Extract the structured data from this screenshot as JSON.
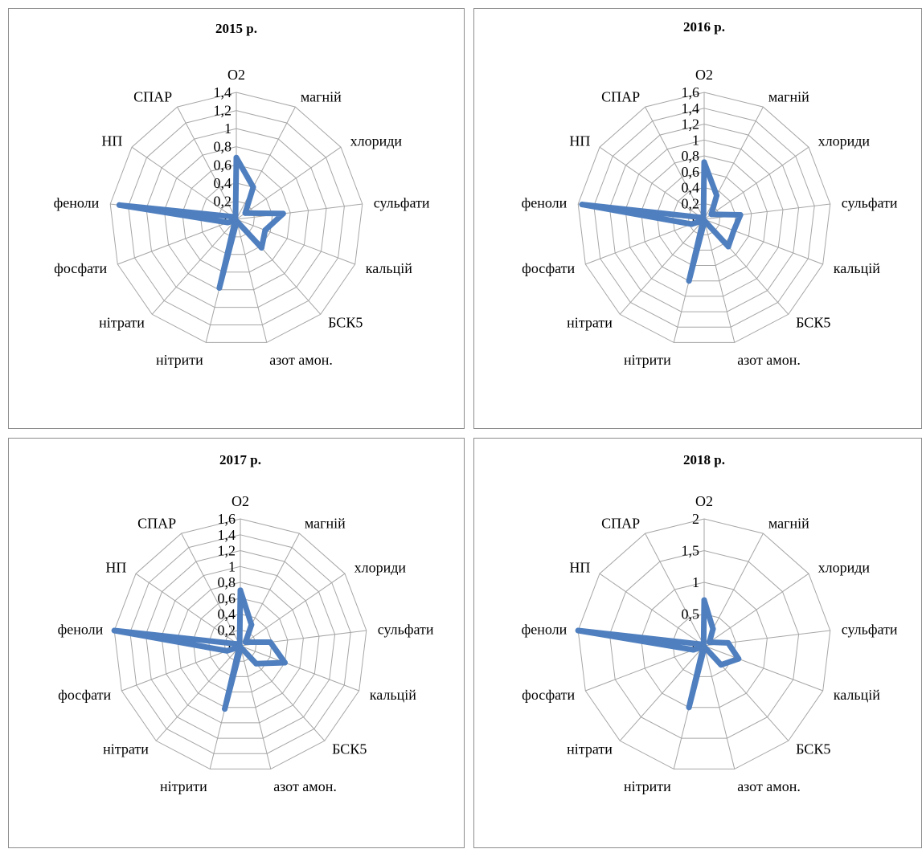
{
  "chart_data": [
    {
      "type": "radar",
      "title": "2015 р.",
      "categories": [
        "O2",
        "магній",
        "хлориди",
        "сульфати",
        "кальцій",
        "БСК5",
        "азот амон.",
        "нітрити",
        "нітрати",
        "фосфати",
        "феноли",
        "НП",
        "СПАР"
      ],
      "values": [
        0.68,
        0.4,
        0.12,
        0.52,
        0.34,
        0.42,
        0.02,
        0.78,
        0.02,
        0.1,
        1.3,
        0.05,
        0.02
      ],
      "ylim": [
        0,
        1.4
      ],
      "ticks": [
        "0",
        "0,2",
        "0,4",
        "0,6",
        "0,8",
        "1",
        "1,2",
        "1,4"
      ],
      "tick_values": [
        0,
        0.2,
        0.4,
        0.6,
        0.8,
        1.0,
        1.2,
        1.4
      ],
      "grid": true,
      "color": "#4f7fbf"
    },
    {
      "type": "radar",
      "title": "2016 р.",
      "categories": [
        "O2",
        "магній",
        "хлориди",
        "сульфати",
        "кальцій",
        "БСК5",
        "азот амон.",
        "нітрити",
        "нітрати",
        "фосфати",
        "феноли",
        "НП",
        "СПАР"
      ],
      "values": [
        0.72,
        0.34,
        0.11,
        0.46,
        0.4,
        0.46,
        0.02,
        0.8,
        0.02,
        0.17,
        1.55,
        0.04,
        0.02
      ],
      "ylim": [
        0,
        1.6
      ],
      "ticks": [
        "0",
        "0,2",
        "0,4",
        "0,6",
        "0,8",
        "1",
        "1,2",
        "1,4",
        "1,6"
      ],
      "tick_values": [
        0,
        0.2,
        0.4,
        0.6,
        0.8,
        1.0,
        1.2,
        1.4,
        1.6
      ],
      "grid": true,
      "color": "#4f7fbf"
    },
    {
      "type": "radar",
      "title": "2017 р.",
      "categories": [
        "O2",
        "магній",
        "хлориди",
        "сульфати",
        "кальцій",
        "БСК5",
        "азот амон.",
        "нітрити",
        "нітрати",
        "фосфати",
        "феноли",
        "НП",
        "СПАР"
      ],
      "values": [
        0.7,
        0.3,
        0.08,
        0.38,
        0.6,
        0.3,
        0.02,
        0.82,
        0.02,
        0.18,
        1.6,
        0.04,
        0.02
      ],
      "ylim": [
        0,
        1.6
      ],
      "ticks": [
        "0",
        "0,2",
        "0,4",
        "0,6",
        "0,8",
        "1",
        "1,2",
        "1,4",
        "1,6"
      ],
      "tick_values": [
        0,
        0.2,
        0.4,
        0.6,
        0.8,
        1.0,
        1.2,
        1.4,
        1.6
      ],
      "grid": true,
      "color": "#4f7fbf"
    },
    {
      "type": "radar",
      "title": "2018 р.",
      "categories": [
        "O2",
        "магній",
        "хлориди",
        "сульфати",
        "кальцій",
        "БСК5",
        "азот амон.",
        "нітрити",
        "нітрати",
        "фосфати",
        "феноли",
        "НП",
        "СПАР"
      ],
      "values": [
        0.72,
        0.3,
        0.1,
        0.38,
        0.58,
        0.4,
        0.02,
        1.0,
        0.02,
        0.18,
        2.0,
        0.04,
        0.02
      ],
      "ylim": [
        0,
        2
      ],
      "ticks": [
        "0",
        "0,5",
        "1",
        "1,5",
        "2"
      ],
      "tick_values": [
        0,
        0.5,
        1.0,
        1.5,
        2.0
      ],
      "grid": true,
      "color": "#4f7fbf"
    }
  ]
}
